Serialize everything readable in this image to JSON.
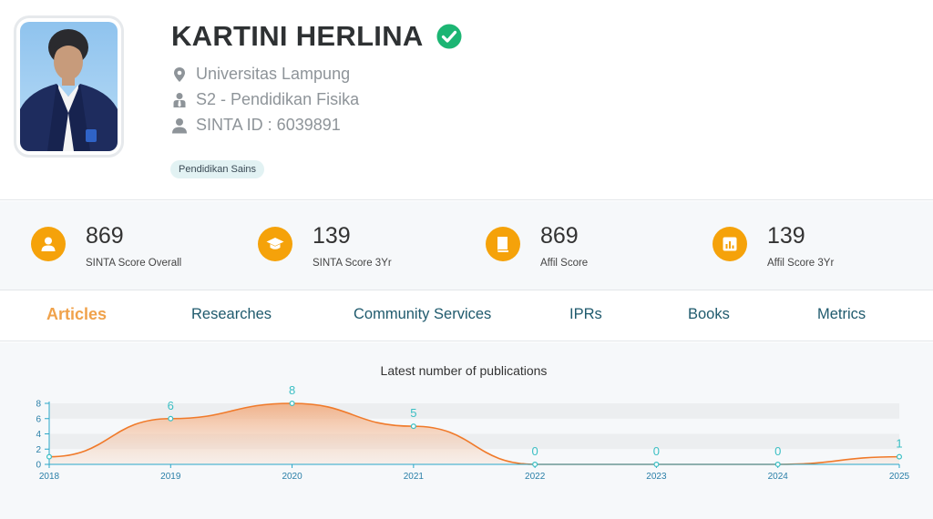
{
  "profile": {
    "name": "KARTINI HERLINA",
    "affiliation": "Universitas Lampung",
    "program": "S2 - Pendidikan Fisika",
    "sinta_id": "SINTA ID : 6039891",
    "tags": [
      "Pendidikan Sains"
    ],
    "verified_color": "#1cb573"
  },
  "stats": [
    {
      "value": "869",
      "label": "SINTA Score Overall",
      "icon": "user-icon"
    },
    {
      "value": "139",
      "label": "SINTA Score 3Yr",
      "icon": "graduation-cap-icon"
    },
    {
      "value": "869",
      "label": "Affil Score",
      "icon": "book-icon"
    },
    {
      "value": "139",
      "label": "Affil Score 3Yr",
      "icon": "bar-chart-icon"
    }
  ],
  "tabs": [
    {
      "label": "Articles",
      "active": true
    },
    {
      "label": "Researches",
      "active": false
    },
    {
      "label": "Community Services",
      "active": false
    },
    {
      "label": "IPRs",
      "active": false
    },
    {
      "label": "Books",
      "active": false
    },
    {
      "label": "Metrics",
      "active": false
    }
  ],
  "colors": {
    "accent": "#f5a20a",
    "tab_active": "#f0a24b",
    "tab_text": "#1f5a6d",
    "series_line": "#f07a2a",
    "data_label": "#3bbfc4",
    "axis": "#2aa7c9"
  },
  "chart_data": {
    "type": "area",
    "title": "Latest number of publications",
    "x": [
      "2018",
      "2019",
      "2020",
      "2021",
      "2022",
      "2023",
      "2024",
      "2025"
    ],
    "series": [
      {
        "values": [
          1,
          6,
          8,
          5,
          0,
          0,
          0,
          1
        ]
      }
    ],
    "data_labels": [
      "",
      "6",
      "8",
      "5",
      "0",
      "0",
      "0",
      "1"
    ],
    "yticks": [
      "0",
      "2",
      "4",
      "6",
      "8"
    ],
    "ylim": [
      0,
      8
    ],
    "legend": "none",
    "grid": true
  }
}
